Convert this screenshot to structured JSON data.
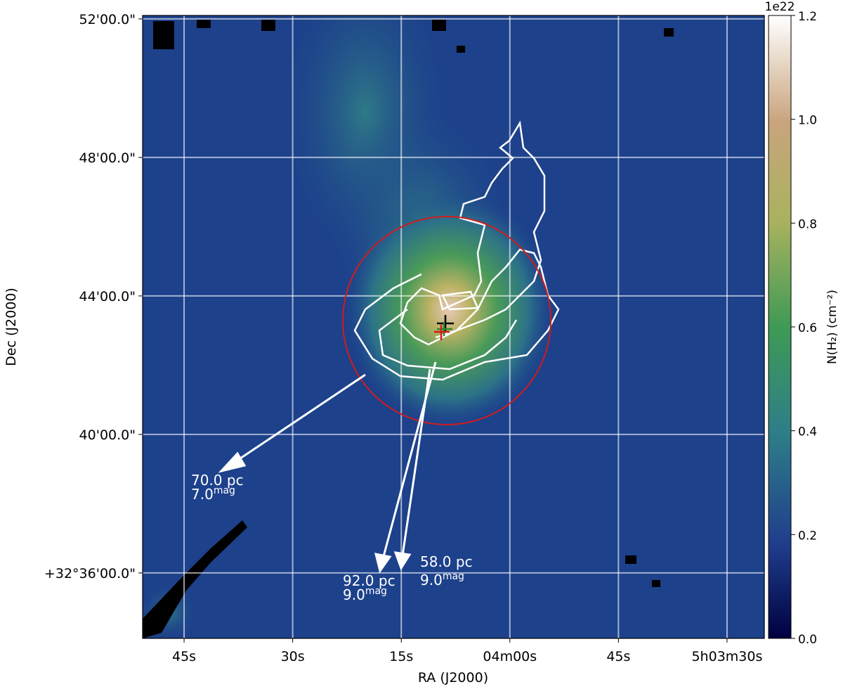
{
  "chart_data": {
    "type": "image",
    "xlabel": "RA (J2000)",
    "ylabel": "Dec (J2000)",
    "xlim": [
      290.73,
      204.85
    ],
    "xticks": [
      {
        "value": 285,
        "label": "45s"
      },
      {
        "value": 270,
        "label": "30s"
      },
      {
        "value": 255,
        "label": "15s"
      },
      {
        "value": 240,
        "label": "04m00s"
      },
      {
        "value": 225,
        "label": "45s"
      },
      {
        "value": 210,
        "label": "5h03m30s"
      }
    ],
    "ylim": [
      34.11,
      52.1
    ],
    "yticks": [
      {
        "value": 52,
        "label": "52'00.0\""
      },
      {
        "value": 48,
        "label": "48'00.0\""
      },
      {
        "value": 44,
        "label": "44'00.0\""
      },
      {
        "value": 40,
        "label": "40'00.0\""
      },
      {
        "value": 36,
        "label": "+32°36'00.0\""
      }
    ],
    "grid": true,
    "colorbar": {
      "label": "N(H₂) (cm⁻²)",
      "offset_label": "1e22",
      "lim": [
        0,
        1.2
      ],
      "ticks": [
        {
          "value": 0,
          "label": "0.0"
        },
        {
          "value": 0.2,
          "label": "0.2"
        },
        {
          "value": 0.4,
          "label": "0.4"
        },
        {
          "value": 0.6,
          "label": "0.6"
        },
        {
          "value": 0.8,
          "label": "0.8"
        },
        {
          "value": 1.0,
          "label": "1.0"
        },
        {
          "value": 1.2,
          "label": "1.2"
        }
      ]
    },
    "annotations": [
      {
        "distance": "70.0 pc",
        "extinction": "7.0",
        "unit": "mag"
      },
      {
        "distance": "92.0 pc",
        "extinction": "9.0",
        "unit": "mag"
      },
      {
        "distance": "58.0 pc",
        "extinction": "9.0",
        "unit": "mag"
      }
    ]
  }
}
